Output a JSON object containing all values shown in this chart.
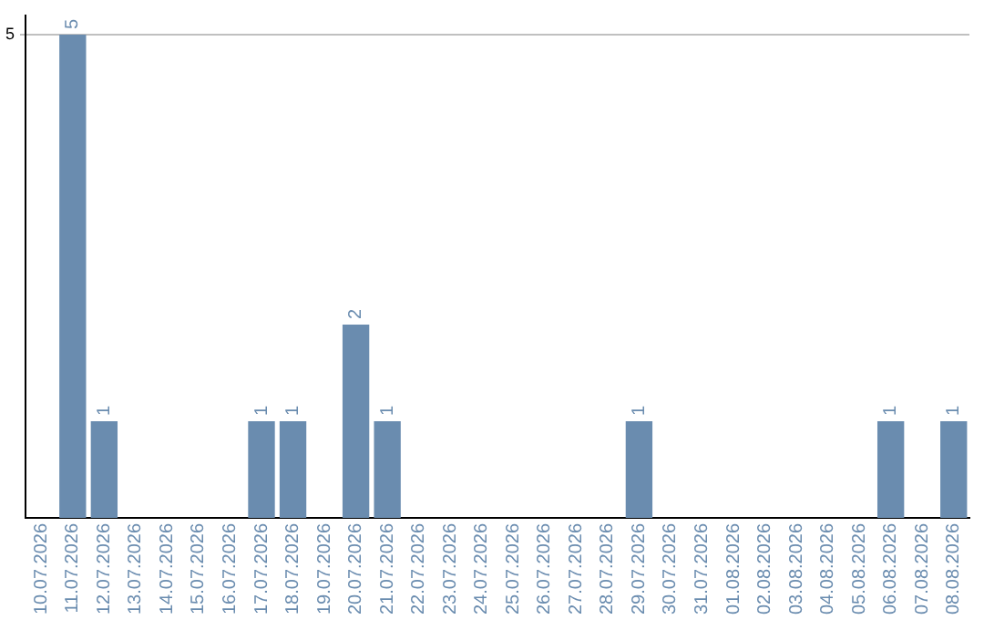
{
  "chart_data": {
    "type": "bar",
    "categories": [
      "10.07.2026",
      "11.07.2026",
      "12.07.2026",
      "13.07.2026",
      "14.07.2026",
      "15.07.2026",
      "16.07.2026",
      "17.07.2026",
      "18.07.2026",
      "19.07.2026",
      "20.07.2026",
      "21.07.2026",
      "22.07.2026",
      "23.07.2026",
      "24.07.2026",
      "25.07.2026",
      "26.07.2026",
      "27.07.2026",
      "28.07.2026",
      "29.07.2026",
      "30.07.2026",
      "31.07.2026",
      "01.08.2026",
      "02.08.2026",
      "03.08.2026",
      "04.08.2026",
      "05.08.2026",
      "06.08.2026",
      "07.08.2026",
      "08.08.2026"
    ],
    "values": [
      0,
      5,
      1,
      0,
      0,
      0,
      0,
      1,
      1,
      0,
      2,
      1,
      0,
      0,
      0,
      0,
      0,
      0,
      0,
      1,
      0,
      0,
      0,
      0,
      0,
      0,
      0,
      1,
      0,
      1
    ],
    "value_labels": [
      null,
      "5",
      "1",
      null,
      null,
      null,
      null,
      "1",
      "1",
      null,
      "2",
      "1",
      null,
      null,
      null,
      null,
      null,
      null,
      null,
      "1",
      null,
      null,
      null,
      null,
      null,
      null,
      null,
      "1",
      null,
      "1"
    ],
    "color": "#6a8caf",
    "ylim": [
      0,
      5.2
    ],
    "yticks": [
      5
    ],
    "grid": "y",
    "legend": false
  }
}
